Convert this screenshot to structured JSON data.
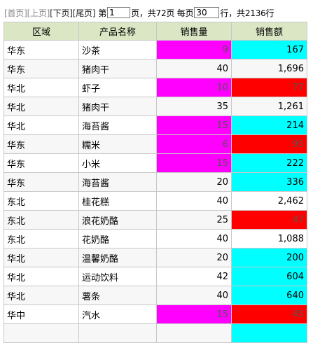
{
  "pager": {
    "first": "[首页]",
    "prev": "[上页]",
    "next": "[下页]",
    "last": "[尾页]",
    "page_prefix": "第",
    "page_value": "1",
    "page_suffix": "页，共72页 每页",
    "per_page_value": "30",
    "rows_suffix": "行，共2136行"
  },
  "table": {
    "headers": [
      "区域",
      "产品名称",
      "销售量",
      "销售额"
    ],
    "rows": [
      {
        "region": "华东",
        "product": "沙茶",
        "qty": "9",
        "amount": "167",
        "qty_color": "magenta",
        "amount_color": "cyan"
      },
      {
        "region": "华东",
        "product": "猪肉干",
        "qty": "40",
        "amount": "1,696",
        "qty_color": "",
        "amount_color": ""
      },
      {
        "region": "华北",
        "product": "虾子",
        "qty": "10",
        "amount": "77",
        "qty_color": "magenta",
        "amount_color": "red"
      },
      {
        "region": "华北",
        "product": "猪肉干",
        "qty": "35",
        "amount": "1,261",
        "qty_color": "",
        "amount_color": ""
      },
      {
        "region": "华北",
        "product": "海苔酱",
        "qty": "15",
        "amount": "214",
        "qty_color": "magenta",
        "amount_color": "cyan"
      },
      {
        "region": "华东",
        "product": "糯米",
        "qty": "6",
        "amount": "95",
        "qty_color": "magenta",
        "amount_color": "red"
      },
      {
        "region": "华东",
        "product": "小米",
        "qty": "15",
        "amount": "222",
        "qty_color": "magenta",
        "amount_color": "cyan"
      },
      {
        "region": "华东",
        "product": "海苔酱",
        "qty": "20",
        "amount": "336",
        "qty_color": "",
        "amount_color": "cyan"
      },
      {
        "region": "东北",
        "product": "桂花糕",
        "qty": "40",
        "amount": "2,462",
        "qty_color": "",
        "amount_color": ""
      },
      {
        "region": "东北",
        "product": "浪花奶酪",
        "qty": "25",
        "amount": "47",
        "qty_color": "",
        "amount_color": "red"
      },
      {
        "region": "东北",
        "product": "花奶酪",
        "qty": "40",
        "amount": "1,088",
        "qty_color": "",
        "amount_color": ""
      },
      {
        "region": "华北",
        "product": "温馨奶酪",
        "qty": "20",
        "amount": "200",
        "qty_color": "",
        "amount_color": "cyan"
      },
      {
        "region": "华北",
        "product": "运动饮料",
        "qty": "42",
        "amount": "604",
        "qty_color": "",
        "amount_color": "cyan"
      },
      {
        "region": "华北",
        "product": "薯条",
        "qty": "40",
        "amount": "640",
        "qty_color": "",
        "amount_color": "cyan"
      },
      {
        "region": "华中",
        "product": "汽水",
        "qty": "15",
        "amount": "45",
        "qty_color": "magenta",
        "amount_color": "red"
      },
      {
        "region": "",
        "product": "",
        "qty": "",
        "amount": "",
        "qty_color": "",
        "amount_color": "cyan"
      }
    ]
  },
  "colors": {
    "header_bg": "#dbe7c4",
    "magenta": "#ff00ff",
    "cyan": "#00ffff",
    "red": "#ff0000"
  }
}
